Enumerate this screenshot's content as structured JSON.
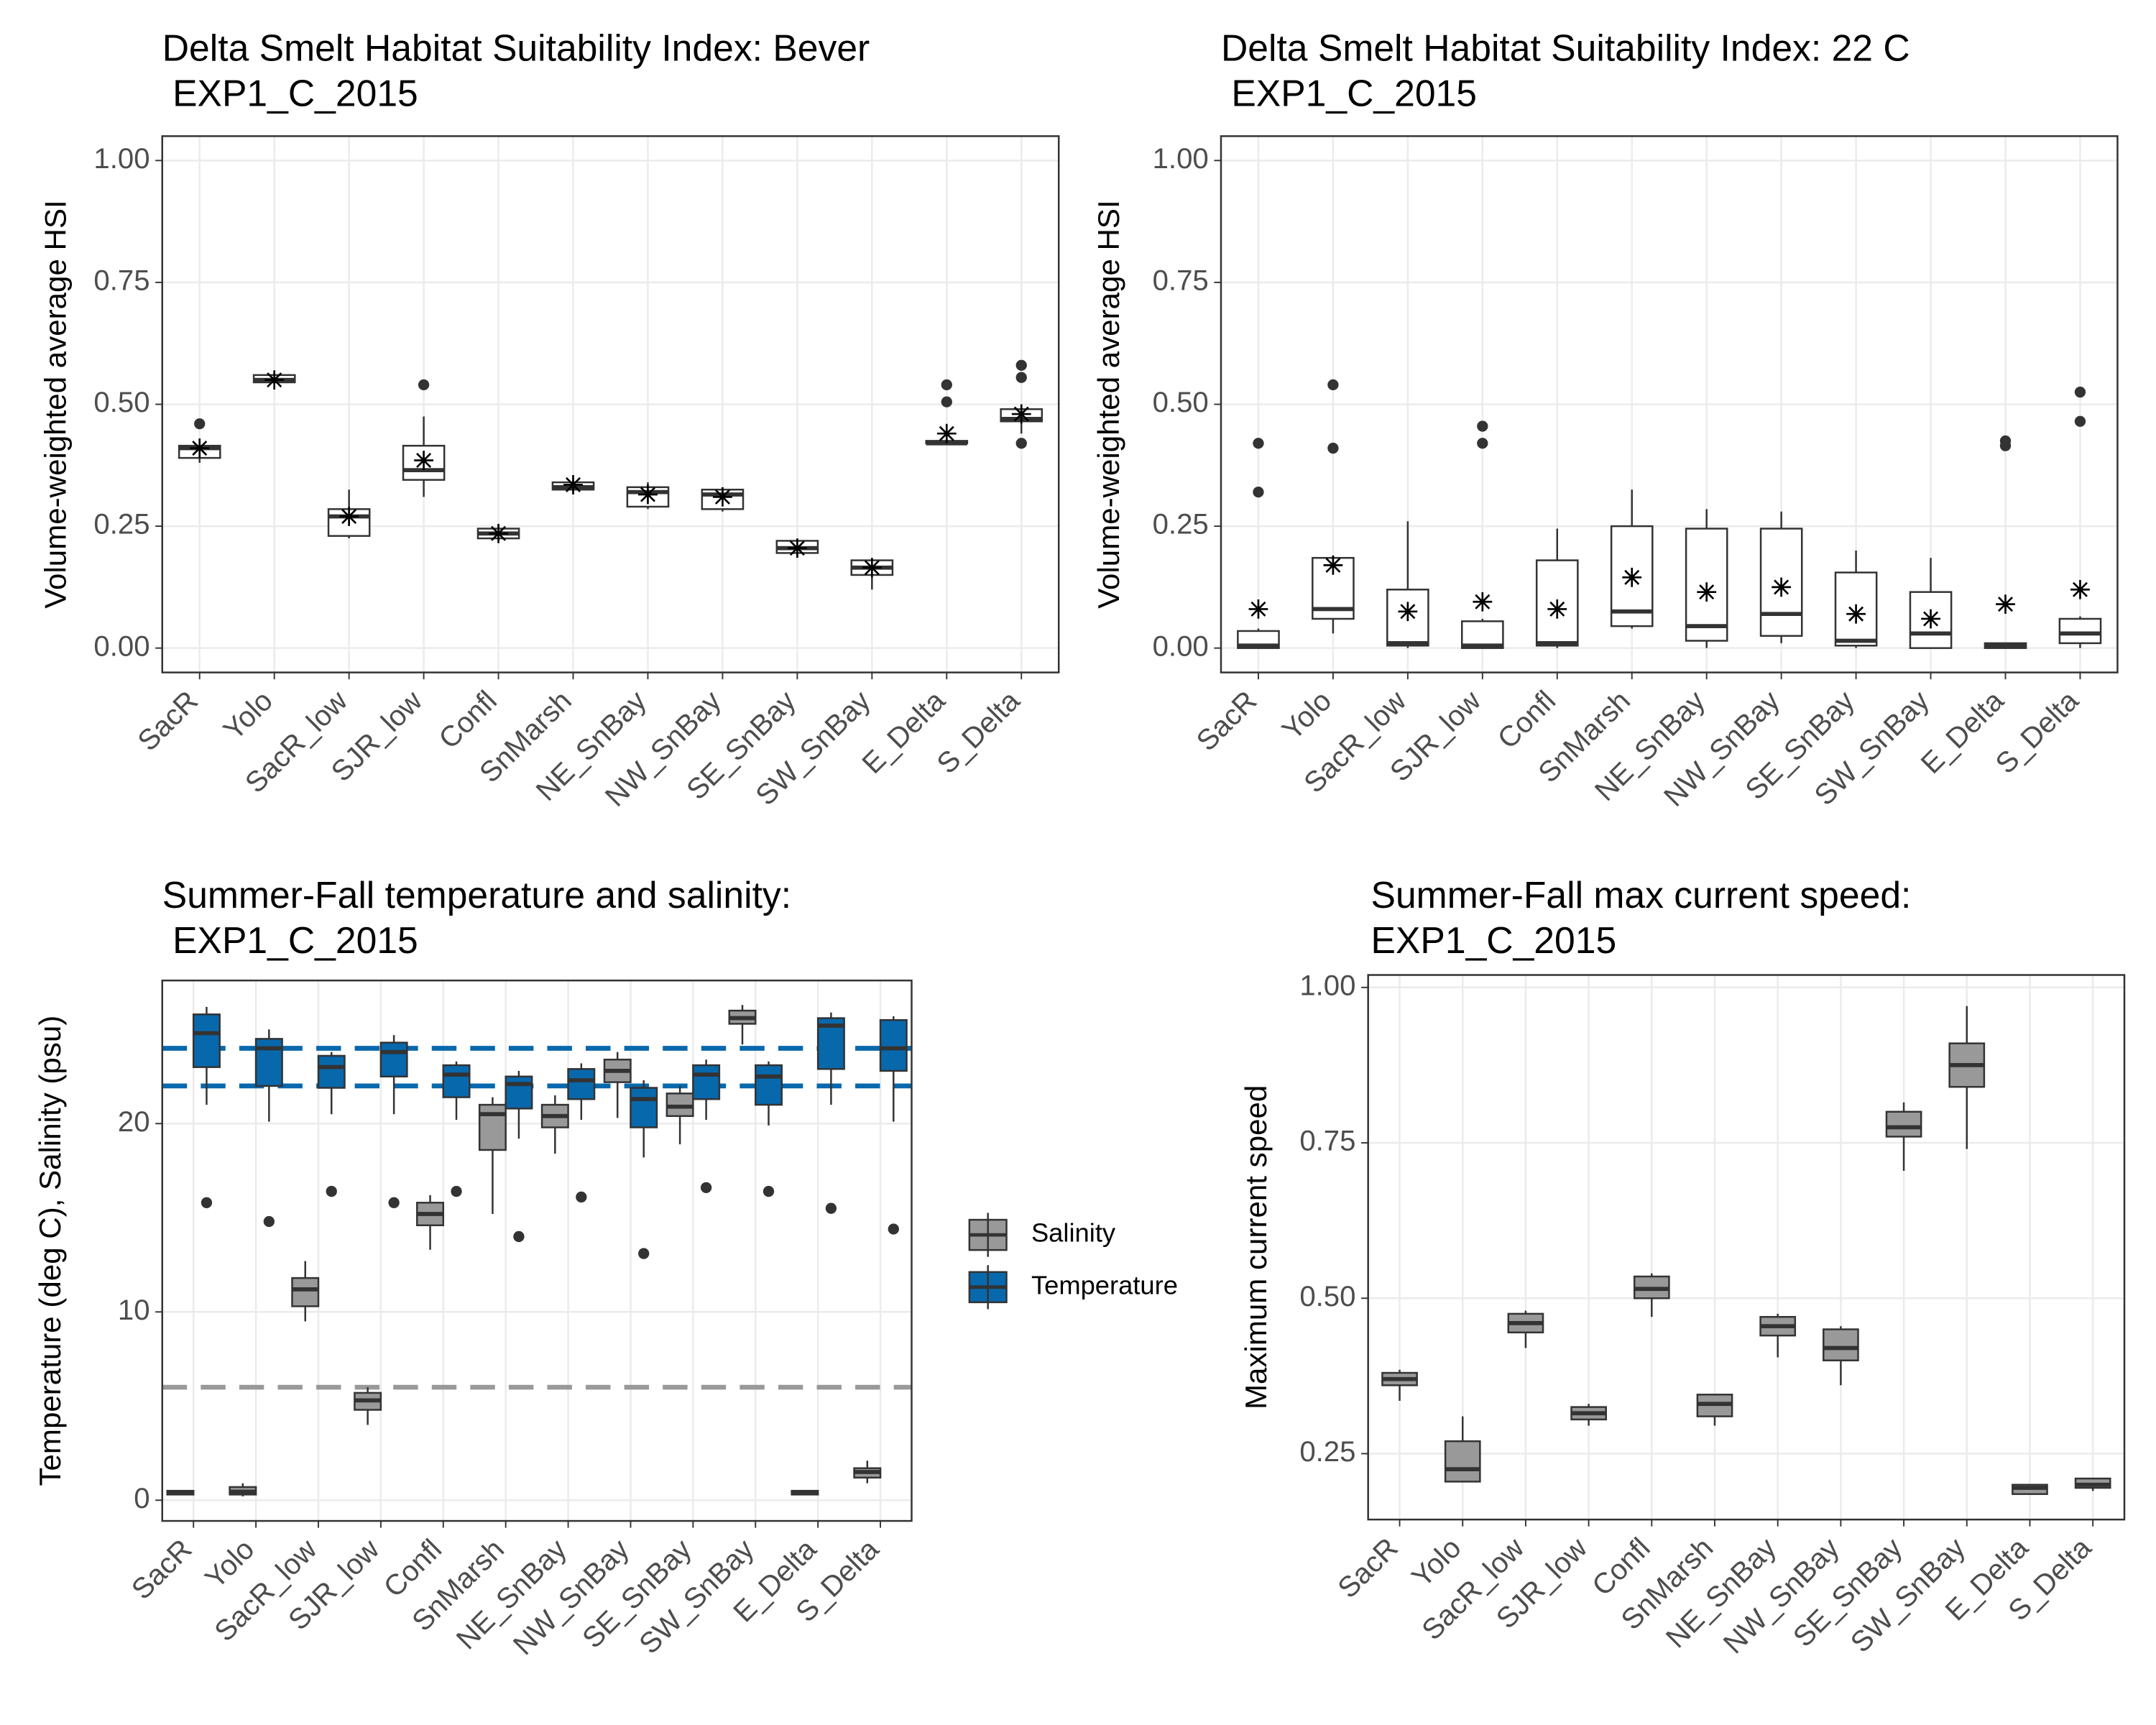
{
  "chart_data": [
    {
      "type": "box",
      "title": [
        "Delta Smelt Habitat Suitability Index: Bever",
        " EXP1_C_2015"
      ],
      "y_label": "Volume-weighted average HSI",
      "categories": [
        "SacR",
        "Yolo",
        "SacR_low",
        "SJR_low",
        "Confl",
        "SnMarsh",
        "NE_SnBay",
        "NW_SnBay",
        "SE_SnBay",
        "SW_SnBay",
        "E_Delta",
        "S_Delta"
      ],
      "ylim": [
        -0.05,
        1.05
      ],
      "yticks": [
        {
          "value": 0,
          "label": "0.00"
        },
        0.25,
        {
          "value": 0.5,
          "label": "0.50"
        },
        0.75,
        {
          "value": 1,
          "label": "1.00"
        }
      ],
      "grid": true,
      "series": [
        {
          "color": "#ffffff",
          "whisker_low": [
            0.38,
            0.54,
            0.225,
            0.31,
            0.22,
            0.32,
            0.285,
            0.28,
            0.185,
            0.12,
            0.42,
            0.44
          ],
          "q1": [
            0.39,
            0.545,
            0.23,
            0.345,
            0.225,
            0.325,
            0.29,
            0.285,
            0.195,
            0.15,
            0.42,
            0.465
          ],
          "median": [
            0.41,
            0.55,
            0.27,
            0.365,
            0.235,
            0.33,
            0.32,
            0.315,
            0.205,
            0.165,
            0.42,
            0.47
          ],
          "q3": [
            0.415,
            0.56,
            0.285,
            0.415,
            0.245,
            0.34,
            0.33,
            0.325,
            0.22,
            0.18,
            0.425,
            0.49
          ],
          "whisker_high": [
            0.43,
            0.56,
            0.325,
            0.475,
            0.25,
            0.345,
            0.34,
            0.33,
            0.225,
            0.185,
            0.425,
            0.5
          ],
          "means": [
            0.41,
            0.55,
            0.27,
            0.385,
            0.235,
            0.335,
            0.315,
            0.31,
            0.205,
            0.165,
            0.44,
            0.48
          ],
          "outliers": [
            [
              0.46
            ],
            [],
            [],
            [
              0.54
            ],
            [],
            [],
            [],
            [],
            [],
            [],
            [
              0.505,
              0.54
            ],
            [
              0.58,
              0.555,
              0.42
            ]
          ]
        }
      ]
    },
    {
      "type": "box",
      "title": [
        "Delta Smelt Habitat Suitability Index: 22 C",
        " EXP1_C_2015"
      ],
      "y_label": "Volume-weighted average HSI",
      "categories": [
        "SacR",
        "Yolo",
        "SacR_low",
        "SJR_low",
        "Confl",
        "SnMarsh",
        "NE_SnBay",
        "NW_SnBay",
        "SE_SnBay",
        "SW_SnBay",
        "E_Delta",
        "S_Delta"
      ],
      "ylim": [
        -0.05,
        1.05
      ],
      "yticks": [
        {
          "value": 0,
          "label": "0.00"
        },
        0.25,
        {
          "value": 0.5,
          "label": "0.50"
        },
        0.75,
        {
          "value": 1,
          "label": "1.00"
        }
      ],
      "grid": true,
      "series": [
        {
          "color": "#ffffff",
          "whisker_low": [
            0,
            0.03,
            0,
            0,
            0,
            0.04,
            0,
            0.01,
            0,
            0,
            0,
            0
          ],
          "q1": [
            0,
            0.06,
            0.005,
            0,
            0.005,
            0.045,
            0.015,
            0.025,
            0.005,
            0,
            0,
            0.01
          ],
          "median": [
            0.005,
            0.08,
            0.01,
            0.005,
            0.01,
            0.075,
            0.045,
            0.07,
            0.015,
            0.03,
            0.005,
            0.03
          ],
          "q3": [
            0.035,
            0.185,
            0.12,
            0.055,
            0.18,
            0.25,
            0.245,
            0.245,
            0.155,
            0.115,
            0.01,
            0.06
          ],
          "whisker_high": [
            0.04,
            0.19,
            0.26,
            0.06,
            0.245,
            0.325,
            0.285,
            0.28,
            0.2,
            0.185,
            0.01,
            0.065
          ],
          "means": [
            0.08,
            0.17,
            0.075,
            0.095,
            0.08,
            0.145,
            0.115,
            0.125,
            0.07,
            0.06,
            0.09,
            0.12
          ],
          "outliers": [
            [
              0.42,
              0.32
            ],
            [
              0.54,
              0.41
            ],
            [],
            [
              0.455,
              0.42
            ],
            [],
            [],
            [],
            [],
            [],
            [],
            [
              0.425,
              0.415
            ],
            [
              0.525,
              0.465
            ]
          ]
        }
      ]
    },
    {
      "type": "box",
      "title": [
        "Summer-Fall temperature and salinity:",
        " EXP1_C_2015"
      ],
      "y_label": "Temperature (deg C), Salinity (psu)",
      "categories": [
        "SacR",
        "Yolo",
        "SacR_low",
        "SJR_low",
        "Confl",
        "SnMarsh",
        "NE_SnBay",
        "NW_SnBay",
        "SE_SnBay",
        "SW_SnBay",
        "E_Delta",
        "S_Delta"
      ],
      "ylim": [
        -1.1,
        27.6
      ],
      "yticks": [
        0,
        10,
        20
      ],
      "grid": true,
      "legend": "right",
      "hlines": [
        {
          "value": 24,
          "color": "#0868ac"
        },
        {
          "value": 22,
          "color": "#0868ac"
        },
        {
          "value": 6,
          "color": "#999999"
        }
      ],
      "series": [
        {
          "name": "Salinity",
          "color": "#999999",
          "whisker_low": [
            0.3,
            0.2,
            9.5,
            4.0,
            13.3,
            15.2,
            18.4,
            20.3,
            18.9,
            24.2,
            0.3,
            0.9
          ],
          "q1": [
            0.3,
            0.3,
            10.3,
            4.8,
            14.6,
            18.6,
            19.8,
            22.2,
            20.4,
            25.3,
            0.3,
            1.2
          ],
          "median": [
            0.4,
            0.45,
            11.2,
            5.3,
            15.2,
            20.5,
            20.4,
            22.8,
            20.9,
            25.6,
            0.4,
            1.5
          ],
          "q3": [
            0.5,
            0.7,
            11.8,
            5.7,
            15.8,
            21.0,
            21.0,
            23.4,
            21.6,
            26.0,
            0.5,
            1.7
          ],
          "whisker_high": [
            0.5,
            0.9,
            12.7,
            6.0,
            16.2,
            21.4,
            21.5,
            23.8,
            22.0,
            26.3,
            0.5,
            2.1
          ],
          "outliers": [
            [],
            [],
            [],
            [],
            [],
            [],
            [],
            [],
            [],
            [],
            [],
            []
          ]
        },
        {
          "name": "Temperature",
          "color": "#0868ac",
          "whisker_low": [
            21.0,
            20.1,
            20.5,
            20.5,
            20.2,
            19.2,
            20.2,
            18.2,
            20.2,
            19.9,
            21.0,
            20.1
          ],
          "q1": [
            23.0,
            22.0,
            21.9,
            22.5,
            21.4,
            20.8,
            21.3,
            19.8,
            21.3,
            21.0,
            22.9,
            22.8
          ],
          "median": [
            24.8,
            24.0,
            23.0,
            23.8,
            22.6,
            22.1,
            22.3,
            21.3,
            22.6,
            22.5,
            25.2,
            24.0
          ],
          "q3": [
            25.8,
            24.5,
            23.6,
            24.3,
            23.1,
            22.5,
            22.9,
            21.9,
            23.1,
            23.1,
            25.6,
            25.5
          ],
          "whisker_high": [
            26.2,
            25.0,
            23.8,
            24.7,
            23.3,
            22.8,
            23.2,
            22.3,
            23.4,
            23.3,
            25.9,
            25.7
          ],
          "outliers": [
            [
              15.8
            ],
            [
              14.8
            ],
            [
              16.4
            ],
            [
              15.8
            ],
            [
              16.4
            ],
            [
              14.0
            ],
            [
              16.1
            ],
            [
              13.1
            ],
            [
              16.6
            ],
            [
              16.4
            ],
            [
              15.5
            ],
            [
              14.4
            ]
          ]
        }
      ]
    },
    {
      "type": "box",
      "title": [
        "Summer-Fall max current speed:",
        "EXP1_C_2015"
      ],
      "y_label": "Maximum current speed",
      "categories": [
        "SacR",
        "Yolo",
        "SacR_low",
        "SJR_low",
        "Confl",
        "SnMarsh",
        "NE_SnBay",
        "NW_SnBay",
        "SE_SnBay",
        "SW_SnBay",
        "E_Delta",
        "S_Delta"
      ],
      "ylim": [
        0.144,
        1.02
      ],
      "yticks": [
        0.25,
        {
          "value": 0.5,
          "label": "0.50"
        },
        0.75,
        {
          "value": 1,
          "label": "1.00"
        }
      ],
      "grid": true,
      "series": [
        {
          "color": "#999999",
          "whisker_low": [
            0.335,
            0.205,
            0.42,
            0.295,
            0.47,
            0.295,
            0.405,
            0.36,
            0.705,
            0.74,
            0.185,
            0.19
          ],
          "q1": [
            0.36,
            0.205,
            0.445,
            0.305,
            0.5,
            0.31,
            0.44,
            0.4,
            0.76,
            0.84,
            0.185,
            0.195
          ],
          "median": [
            0.37,
            0.225,
            0.46,
            0.315,
            0.515,
            0.33,
            0.455,
            0.42,
            0.775,
            0.875,
            0.195,
            0.2
          ],
          "q3": [
            0.38,
            0.27,
            0.475,
            0.325,
            0.535,
            0.345,
            0.47,
            0.45,
            0.8,
            0.91,
            0.2,
            0.21
          ],
          "whisker_high": [
            0.385,
            0.31,
            0.48,
            0.33,
            0.54,
            0.345,
            0.475,
            0.455,
            0.815,
            0.97,
            0.2,
            0.21
          ],
          "outliers": [
            [],
            [],
            [],
            [],
            [],
            [],
            [],
            [],
            [],
            [],
            [],
            []
          ]
        }
      ]
    }
  ]
}
